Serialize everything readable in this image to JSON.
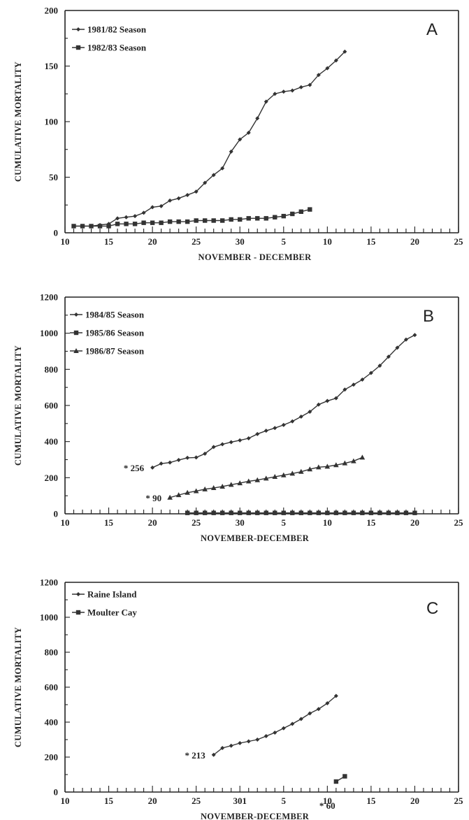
{
  "chart_data": [
    {
      "type": "line",
      "panel_label": "A",
      "xlabel": "NOVEMBER - DECEMBER",
      "ylabel": "CUMULATIVE MORTALITY",
      "ylim": [
        0,
        200
      ],
      "yticks": [
        "0",
        "50",
        "100",
        "150",
        "200"
      ],
      "xticks": [
        "10",
        "15",
        "20",
        "25",
        "30",
        "5",
        "10",
        "15",
        "20",
        "25"
      ],
      "legend_position": "top-left",
      "grid": false,
      "series": [
        {
          "name": "1981/82 Season",
          "marker": "diamond",
          "x": [
            11,
            12,
            13,
            14,
            15,
            16,
            17,
            18,
            19,
            20,
            21,
            22,
            23,
            24,
            25,
            26,
            27,
            28,
            29,
            30,
            31,
            32,
            33,
            34,
            35,
            36,
            37,
            38,
            39,
            40,
            41,
            42
          ],
          "y": [
            6,
            6,
            6,
            7,
            8,
            13,
            14,
            15,
            18,
            23,
            24,
            29,
            31,
            34,
            37,
            45,
            52,
            58,
            73,
            84,
            90,
            103,
            118,
            125,
            127,
            128,
            131,
            133,
            142,
            148,
            155,
            163
          ]
        },
        {
          "name": "1982/83 Season",
          "marker": "square",
          "x": [
            11,
            12,
            13,
            14,
            15,
            16,
            17,
            18,
            19,
            20,
            21,
            22,
            23,
            24,
            25,
            26,
            27,
            28,
            29,
            30,
            31,
            32,
            33,
            34,
            35,
            36,
            37,
            38
          ],
          "y": [
            6,
            6,
            6,
            6,
            6,
            8,
            8,
            8,
            9,
            9,
            9,
            10,
            10,
            10,
            11,
            11,
            11,
            11,
            12,
            12,
            13,
            13,
            13,
            14,
            15,
            17,
            19,
            21
          ]
        }
      ],
      "annotations": []
    },
    {
      "type": "line",
      "panel_label": "B",
      "xlabel": "NOVEMBER-DECEMBER",
      "ylabel": "CUMULATIVE MORTALITY",
      "ylim": [
        0,
        1200
      ],
      "yticks": [
        "0",
        "200",
        "400",
        "600",
        "800",
        "1000",
        "1200"
      ],
      "xticks": [
        "10",
        "15",
        "20",
        "25",
        "30",
        "5",
        "10",
        "15",
        "20",
        "25"
      ],
      "legend_position": "top-left",
      "grid": false,
      "series": [
        {
          "name": "1984/85 Season",
          "marker": "diamond",
          "x": [
            20,
            21,
            22,
            23,
            24,
            25,
            26,
            27,
            28,
            29,
            30,
            31,
            32,
            33,
            34,
            35,
            36,
            37,
            38,
            39,
            40,
            41,
            42,
            43,
            44,
            45,
            46,
            47,
            48,
            49,
            50
          ],
          "y": [
            256,
            278,
            284,
            298,
            310,
            312,
            333,
            370,
            385,
            397,
            407,
            418,
            442,
            460,
            475,
            492,
            512,
            538,
            565,
            605,
            625,
            640,
            688,
            715,
            743,
            780,
            820,
            870,
            920,
            965,
            990
          ]
        },
        {
          "name": "1985/86 Season",
          "marker": "square",
          "x": [
            24,
            25,
            26,
            27,
            28,
            29,
            30,
            31,
            32,
            33,
            34,
            35,
            36,
            37,
            38,
            39,
            40,
            41,
            42,
            43,
            44,
            45,
            46,
            47,
            48,
            49,
            50
          ],
          "y": [
            5,
            5,
            5,
            5,
            5,
            5,
            5,
            5,
            5,
            5,
            5,
            5,
            5,
            5,
            5,
            5,
            5,
            5,
            5,
            5,
            5,
            5,
            5,
            5,
            5,
            5,
            5
          ]
        },
        {
          "name": "1986/87 Season",
          "marker": "triangle",
          "x": [
            22,
            23,
            24,
            25,
            26,
            27,
            28,
            29,
            30,
            31,
            32,
            33,
            34,
            35,
            36,
            37,
            38,
            39,
            40,
            41,
            42,
            43,
            44
          ],
          "y": [
            90,
            104,
            117,
            126,
            136,
            143,
            151,
            161,
            170,
            180,
            187,
            196,
            205,
            214,
            223,
            233,
            247,
            258,
            262,
            270,
            280,
            292,
            312
          ]
        }
      ],
      "annotations": [
        {
          "text": "* 256",
          "x": 20,
          "y": 256
        },
        {
          "text": "* 90",
          "x": 22,
          "y": 90
        }
      ]
    },
    {
      "type": "line",
      "panel_label": "C",
      "xlabel": "NOVEMBER-DECEMBER",
      "ylabel": "CUMULATIVE MORTALITY",
      "ylim": [
        0,
        1200
      ],
      "yticks": [
        "0",
        "200",
        "400",
        "600",
        "800",
        "1000",
        "1200"
      ],
      "xticks": [
        "10",
        "15",
        "20",
        "25",
        "301",
        "5",
        "10",
        "15",
        "20",
        "25"
      ],
      "legend_position": "top-left",
      "grid": false,
      "series": [
        {
          "name": "Raine Island",
          "marker": "diamond",
          "x": [
            27,
            28,
            29,
            30,
            31,
            32,
            33,
            34,
            35,
            36,
            37,
            38,
            39,
            40,
            41
          ],
          "y": [
            213,
            252,
            265,
            280,
            290,
            300,
            320,
            340,
            365,
            390,
            418,
            450,
            475,
            508,
            550
          ]
        },
        {
          "name": "Moulter Cay",
          "marker": "square",
          "x": [
            41,
            42
          ],
          "y": [
            60,
            90
          ]
        }
      ],
      "annotations": [
        {
          "text": "* 213",
          "x": 27,
          "y": 213
        },
        {
          "text": "* 60",
          "x": 41,
          "y": 60
        }
      ]
    }
  ]
}
